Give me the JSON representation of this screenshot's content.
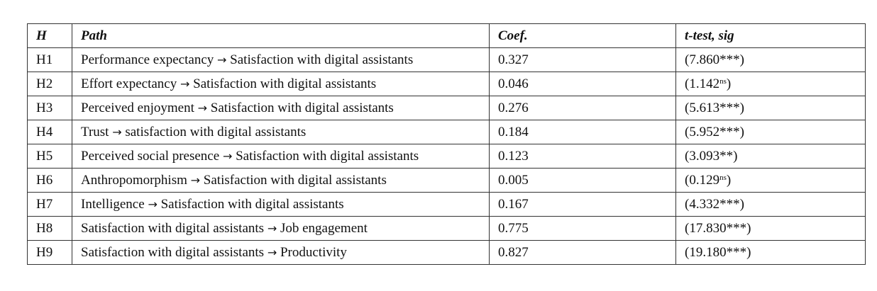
{
  "table": {
    "headers": {
      "h": "H",
      "path": "Path",
      "coef": "Coef.",
      "ttest": "t-test, sig"
    },
    "arrow": "→",
    "rows": [
      {
        "h": "H1",
        "from": "Performance expectancy",
        "to": "Satisfaction with digital assistants",
        "coef": "0.327",
        "t": "(7.860",
        "sig": "***",
        "close": ")"
      },
      {
        "h": "H2",
        "from": "Effort expectancy",
        "to": "Satisfaction with digital assistants",
        "coef": "0.046",
        "t": "(1.142",
        "sig_sup": "ns",
        "close": ")"
      },
      {
        "h": "H3",
        "from": "Perceived enjoyment",
        "to": "Satisfaction with digital assistants",
        "coef": "0.276",
        "t": "(5.613",
        "sig": "***",
        "close": ")"
      },
      {
        "h": "H4",
        "from": "Trust",
        "to": "satisfaction with digital assistants",
        "coef": "0.184",
        "t": "(5.952",
        "sig": "***",
        "close": ")"
      },
      {
        "h": "H5",
        "from": "Perceived social presence",
        "to": "Satisfaction with digital assistants",
        "coef": "0.123",
        "t": "(3.093",
        "sig": "**",
        "close": ")"
      },
      {
        "h": "H6",
        "from": "Anthropomorphism",
        "to": "Satisfaction with digital assistants",
        "coef": "0.005",
        "t": "(0.129",
        "sig_sup": "ns",
        "close": ")"
      },
      {
        "h": "H7",
        "from": "Intelligence",
        "to": "Satisfaction with digital assistants",
        "coef": "0.167",
        "t": "(4.332",
        "sig": "***",
        "close": ")"
      },
      {
        "h": "H8",
        "from": "Satisfaction with digital assistants",
        "to": "Job engagement",
        "coef": "0.775",
        "t": "(17.830",
        "sig": "***",
        "close": ")"
      },
      {
        "h": "H9",
        "from": "Satisfaction with digital assistants",
        "to": "Productivity",
        "coef": "0.827",
        "t": "(19.180",
        "sig": "***",
        "close": ")"
      }
    ]
  }
}
